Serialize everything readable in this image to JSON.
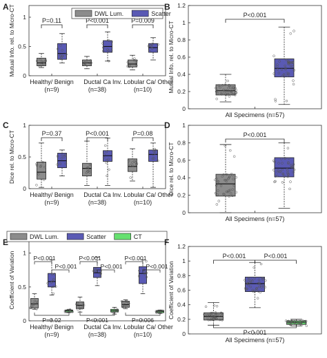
{
  "colors": {
    "dwl": "#8c8c8c",
    "scatter": "#5a5ab4",
    "ct": "#66e070",
    "axis": "#333333"
  },
  "chart_data": [
    {
      "panel": "A",
      "type": "boxplot",
      "ylabel": "Mutual Info. rel. to Micro-CT",
      "ylim": [
        0,
        1.2
      ],
      "yticks": [
        0,
        0.5,
        1
      ],
      "categories": [
        "Healthy/ Benign (n=9)",
        "Ductal Ca (n=38)",
        "Inv. Lobular Ca/ Other (n=10)"
      ],
      "legend": [
        "DWL Lum.",
        "Scatter"
      ],
      "series": [
        {
          "name": "DWL Lum.",
          "boxes": [
            [
              0.14,
              0.17,
              0.22,
              0.3,
              0.38
            ],
            [
              0.12,
              0.17,
              0.22,
              0.27,
              0.33
            ],
            [
              0.1,
              0.15,
              0.2,
              0.27,
              0.35
            ]
          ]
        },
        {
          "name": "Scatter",
          "boxes": [
            [
              0.22,
              0.28,
              0.38,
              0.55,
              0.72
            ],
            [
              0.25,
              0.4,
              0.5,
              0.6,
              0.75
            ],
            [
              0.27,
              0.4,
              0.48,
              0.55,
              0.65
            ]
          ]
        }
      ],
      "significance": [
        {
          "group": 0,
          "label": "P=0.11"
        },
        {
          "group": 1,
          "label": "P<0.001"
        },
        {
          "group": 2,
          "label": "P=0.009"
        }
      ]
    },
    {
      "panel": "B",
      "type": "boxplot",
      "ylabel": "Mutual Info. rel. to Micro-CT",
      "ylim": [
        0,
        1.2
      ],
      "yticks": [
        0,
        0.2,
        0.4,
        0.6,
        0.8,
        1,
        1.2
      ],
      "categories": [
        "All Specimens (n=57)"
      ],
      "series": [
        {
          "name": "DWL Lum.",
          "boxes": [
            [
              0.08,
              0.16,
              0.21,
              0.28,
              0.4
            ]
          ]
        },
        {
          "name": "Scatter",
          "boxes": [
            [
              0.05,
              0.37,
              0.47,
              0.58,
              0.95
            ]
          ]
        }
      ],
      "significance": [
        {
          "label": "P<0.001",
          "span": [
            0,
            1
          ]
        }
      ]
    },
    {
      "panel": "C",
      "type": "boxplot",
      "ylabel": "Dice rel. to Micro-CT",
      "ylim": [
        0,
        1
      ],
      "yticks": [
        0,
        0.5,
        1
      ],
      "categories": [
        "Healthy/ Benign (n=9)",
        "Ductal Ca (n=38)",
        "Inv. Lobular Ca/ Other (n=10)"
      ],
      "series": [
        {
          "name": "DWL Lum.",
          "boxes": [
            [
              0.02,
              0.15,
              0.26,
              0.42,
              0.72
            ],
            [
              0.05,
              0.2,
              0.32,
              0.4,
              0.75
            ],
            [
              0.12,
              0.27,
              0.35,
              0.47,
              0.63
            ]
          ]
        },
        {
          "name": "Scatter",
          "boxes": [
            [
              0.2,
              0.33,
              0.44,
              0.56,
              0.61
            ],
            [
              0.05,
              0.43,
              0.52,
              0.6,
              0.8
            ],
            [
              0.02,
              0.43,
              0.54,
              0.61,
              0.72
            ]
          ]
        }
      ],
      "significance": [
        {
          "group": 0,
          "label": "P=0.37"
        },
        {
          "group": 1,
          "label": "P<0.001"
        },
        {
          "group": 2,
          "label": "P=0.08"
        }
      ]
    },
    {
      "panel": "D",
      "type": "boxplot",
      "ylabel": "Dice rel. to Micro-CT",
      "ylim": [
        0,
        1
      ],
      "yticks": [
        0,
        0.2,
        0.4,
        0.6,
        0.8,
        1
      ],
      "categories": [
        "All Specimens (n=57)"
      ],
      "series": [
        {
          "name": "DWL Lum.",
          "boxes": [
            [
              0.0,
              0.19,
              0.33,
              0.44,
              0.78
            ]
          ]
        },
        {
          "name": "Scatter",
          "boxes": [
            [
              0.05,
              0.41,
              0.51,
              0.63,
              0.8
            ]
          ]
        }
      ],
      "significance": [
        {
          "label": "P<0.001",
          "span": [
            0,
            1
          ]
        }
      ]
    },
    {
      "panel": "E",
      "type": "boxplot",
      "ylabel": "Coefficient of Variation",
      "ylim": [
        0,
        1.2
      ],
      "yticks": [
        0,
        0.5,
        1
      ],
      "categories": [
        "Healthy/ Benign (n=9)",
        "Ductal Ca (n=38)",
        "Inv. Lobular Ca/ Other (n=10)"
      ],
      "legend": [
        "DWL Lum.",
        "Scatter",
        "CT"
      ],
      "series": [
        {
          "name": "DWL Lum.",
          "boxes": [
            [
              0.17,
              0.19,
              0.25,
              0.33,
              0.4
            ],
            [
              0.13,
              0.18,
              0.23,
              0.28,
              0.35
            ],
            [
              0.18,
              0.2,
              0.24,
              0.29,
              0.31
            ]
          ]
        },
        {
          "name": "Scatter",
          "boxes": [
            [
              0.38,
              0.5,
              0.58,
              0.7,
              0.9
            ],
            [
              0.52,
              0.64,
              0.71,
              0.79,
              0.94
            ],
            [
              0.4,
              0.55,
              0.7,
              0.8,
              0.9
            ]
          ]
        },
        {
          "name": "CT",
          "boxes": [
            [
              0.12,
              0.13,
              0.15,
              0.16,
              0.17
            ],
            [
              0.1,
              0.13,
              0.15,
              0.17,
              0.2
            ],
            [
              0.11,
              0.12,
              0.14,
              0.15,
              0.16
            ]
          ]
        }
      ],
      "significance": [
        {
          "group": 0,
          "top": [
            "P<0.001",
            "P<0.001"
          ],
          "bottom": "P=0.02"
        },
        {
          "group": 1,
          "top": [
            "P<0.001",
            "P<0.001"
          ],
          "bottom": "P<0.001"
        },
        {
          "group": 2,
          "top": [
            "P<0.001",
            "P<0.001"
          ],
          "bottom": "P=0.006"
        }
      ]
    },
    {
      "panel": "F",
      "type": "boxplot",
      "ylabel": "Coefficient of Variation",
      "ylim": [
        0,
        1.2
      ],
      "yticks": [
        0,
        0.2,
        0.4,
        0.6,
        0.8,
        1,
        1.2
      ],
      "categories": [
        "All Specimens (n=57)"
      ],
      "series": [
        {
          "name": "DWL Lum.",
          "boxes": [
            [
              0.12,
              0.19,
              0.24,
              0.29,
              0.43
            ]
          ]
        },
        {
          "name": "Scatter",
          "boxes": [
            [
              0.36,
              0.58,
              0.69,
              0.78,
              0.98
            ]
          ]
        },
        {
          "name": "CT",
          "boxes": [
            [
              0.11,
              0.13,
              0.16,
              0.18,
              0.2
            ]
          ]
        }
      ],
      "significance": [
        {
          "label": "P<0.001",
          "span": [
            0,
            1
          ]
        },
        {
          "label": "P<0.001",
          "span": [
            1,
            2
          ]
        },
        {
          "label": "P<0.001",
          "span": [
            0,
            2
          ],
          "position": "bottom"
        }
      ]
    }
  ]
}
